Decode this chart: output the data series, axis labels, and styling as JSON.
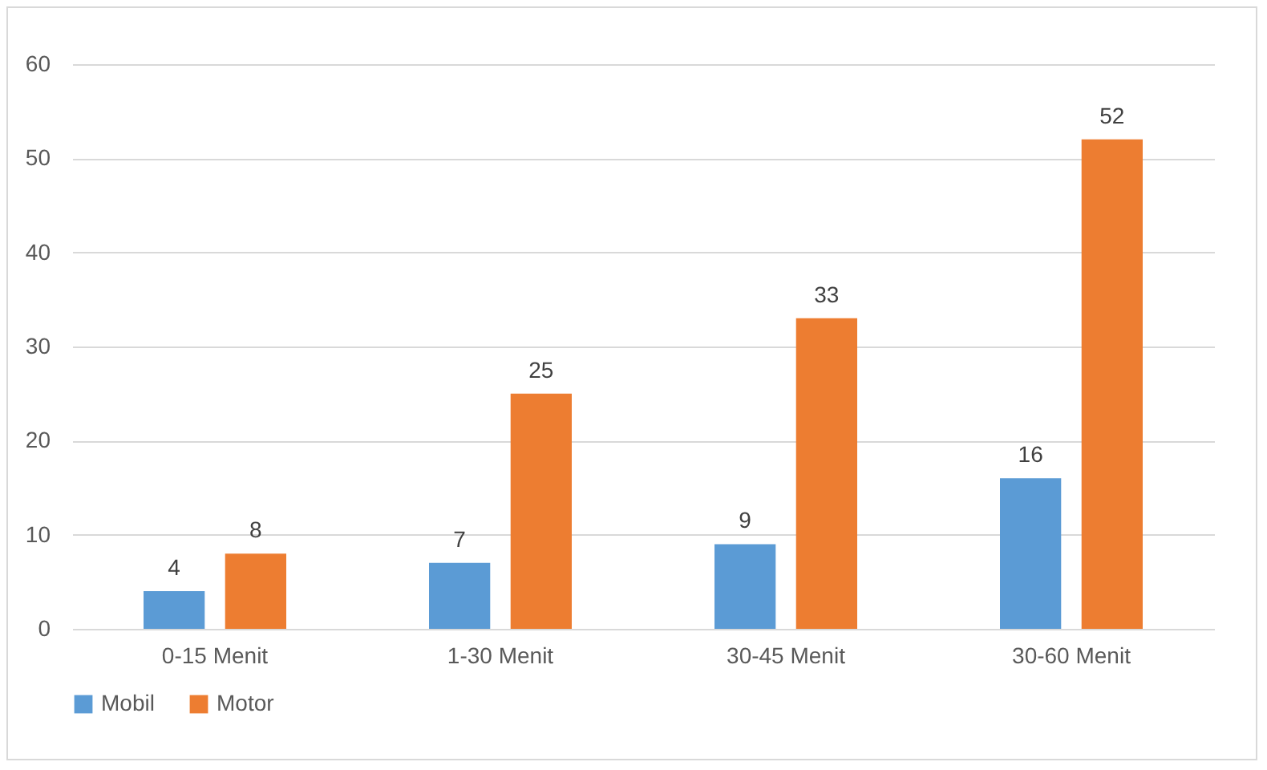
{
  "chart_data": {
    "type": "bar",
    "categories": [
      "0-15 Menit",
      "1-30 Menit",
      "30-45 Menit",
      "30-60 Menit"
    ],
    "series": [
      {
        "name": "Mobil",
        "color": "#5b9bd5",
        "values": [
          4,
          7,
          9,
          16
        ]
      },
      {
        "name": "Motor",
        "color": "#ed7d31",
        "values": [
          8,
          25,
          33,
          52
        ]
      }
    ],
    "ylim": [
      0,
      60
    ],
    "yticks": [
      0,
      10,
      20,
      30,
      40,
      50,
      60
    ],
    "grid": "y",
    "legend": "bottom",
    "data_labels": true
  }
}
